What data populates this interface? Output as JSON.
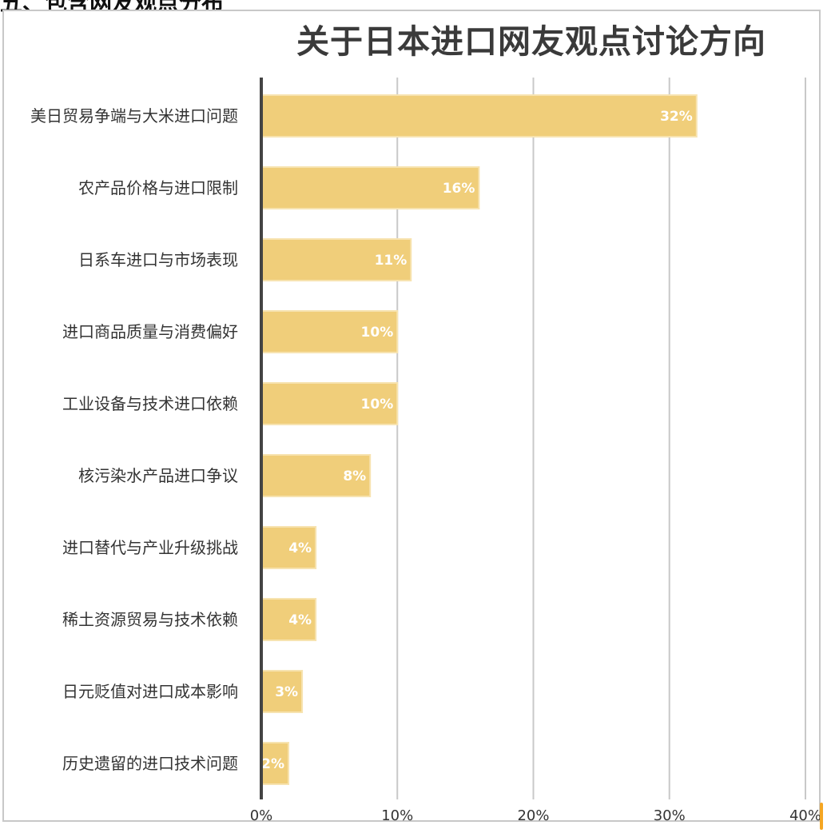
{
  "section_heading": "五、包含网友观点分布",
  "colors": {
    "bar_fill": "#f0ce7a",
    "bar_stroke": "#f7e3b0",
    "grid": "#c8c8c8",
    "axis": "#444444",
    "label_text": "#333333",
    "data_label": "#ffffff",
    "marker": "#f5a623"
  },
  "chart_data": {
    "type": "bar",
    "orientation": "horizontal",
    "title": "关于日本进口网友观点讨论方向",
    "xlabel": "",
    "ylabel": "",
    "xlim": [
      0,
      40
    ],
    "ticks": [
      0,
      10,
      20,
      30,
      40
    ],
    "tick_labels": [
      "0%",
      "10%",
      "20%",
      "30%",
      "40%"
    ],
    "grid": true,
    "legend": "none",
    "categories": [
      "美日贸易争端与大米进口问题",
      "农产品价格与进口限制",
      "日系车进口与市场表现",
      "进口商品质量与消费偏好",
      "工业设备与技术进口依赖",
      "核污染水产品进口争议",
      "进口替代与产业升级挑战",
      "稀土资源贸易与技术依赖",
      "日元贬值对进口成本影响",
      "历史遗留的进口技术问题"
    ],
    "values": [
      32,
      16,
      11,
      10,
      10,
      8,
      4,
      4,
      3,
      2
    ],
    "data_labels": [
      "32%",
      "16%",
      "11%",
      "10%",
      "10%",
      "8%",
      "4%",
      "4%",
      "3%",
      "2%"
    ]
  }
}
